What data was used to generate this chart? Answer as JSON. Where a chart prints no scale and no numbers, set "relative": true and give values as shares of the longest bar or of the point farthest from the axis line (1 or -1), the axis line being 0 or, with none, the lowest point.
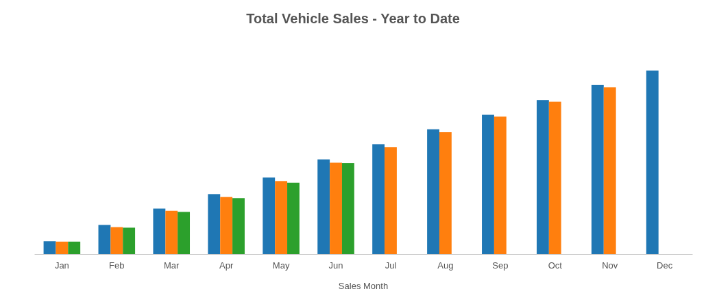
{
  "chart_data": {
    "type": "bar",
    "title": "Total Vehicle Sales - Year to Date",
    "xlabel": "Sales Month",
    "relative": true,
    "categories": [
      "Jan",
      "Feb",
      "Mar",
      "Apr",
      "May",
      "Jun",
      "Jul",
      "Aug",
      "Sep",
      "Oct",
      "Nov",
      "Dec"
    ],
    "series": [
      {
        "color": "#1f77b4",
        "values": [
          0.07,
          0.159,
          0.248,
          0.327,
          0.417,
          0.516,
          0.599,
          0.68,
          0.759,
          0.839,
          0.922,
          1
        ]
      },
      {
        "color": "#ff7f0e",
        "values": [
          0.068,
          0.147,
          0.236,
          0.311,
          0.398,
          0.498,
          0.582,
          0.664,
          0.749,
          0.83,
          0.909,
          null
        ]
      },
      {
        "color": "#2ca02c",
        "values": [
          0.068,
          0.144,
          0.23,
          0.305,
          0.389,
          0.496,
          null,
          null,
          null,
          null,
          null,
          null
        ]
      }
    ]
  }
}
